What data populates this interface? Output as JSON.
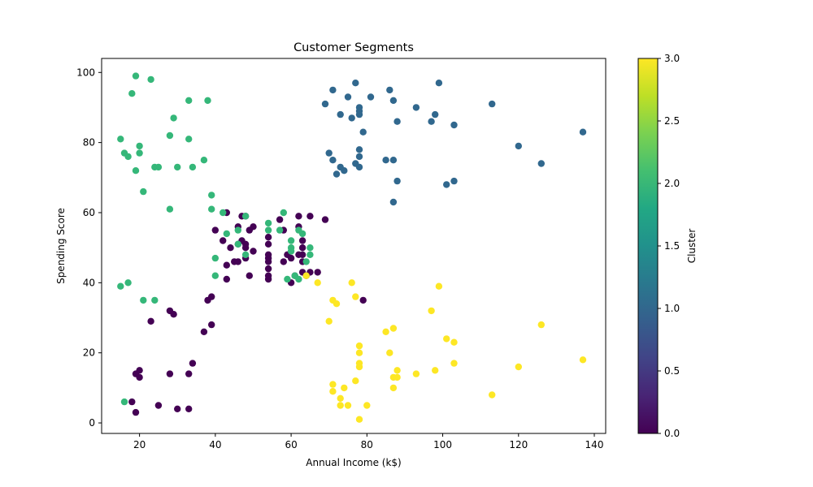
{
  "chart_data": {
    "type": "scatter",
    "title": "Customer Segments",
    "xlabel": "Annual Income (k$)",
    "ylabel": "Spending Score",
    "xlim": [
      10,
      143
    ],
    "ylim": [
      -3,
      104
    ],
    "xticks": [
      20,
      40,
      60,
      80,
      100,
      120,
      140
    ],
    "yticks": [
      0,
      20,
      40,
      60,
      80,
      100
    ],
    "grid": false,
    "colorbar": {
      "label": "Cluster",
      "min": 0.0,
      "max": 3.0,
      "ticks": [
        "0.0",
        "0.5",
        "1.0",
        "1.5",
        "2.0",
        "2.5",
        "3.0"
      ],
      "colormap": "viridis"
    },
    "cluster_colors": [
      "#440154",
      "#31688e",
      "#35b779",
      "#fde725"
    ],
    "series": [
      {
        "cluster": 0,
        "points": [
          [
            18,
            6
          ],
          [
            19,
            3
          ],
          [
            19,
            14
          ],
          [
            20,
            15
          ],
          [
            20,
            13
          ],
          [
            23,
            29
          ],
          [
            25,
            5
          ],
          [
            28,
            14
          ],
          [
            28,
            32
          ],
          [
            29,
            31
          ],
          [
            30,
            4
          ],
          [
            33,
            4
          ],
          [
            33,
            14
          ],
          [
            34,
            17
          ],
          [
            37,
            26
          ],
          [
            38,
            35
          ],
          [
            39,
            28
          ],
          [
            39,
            36
          ],
          [
            40,
            55
          ],
          [
            42,
            52
          ],
          [
            43,
            60
          ],
          [
            43,
            45
          ],
          [
            43,
            41
          ],
          [
            44,
            50
          ],
          [
            45,
            46
          ],
          [
            46,
            51
          ],
          [
            46,
            46
          ],
          [
            46,
            56
          ],
          [
            47,
            59
          ],
          [
            47,
            52
          ],
          [
            48,
            51
          ],
          [
            48,
            50
          ],
          [
            48,
            59
          ],
          [
            48,
            47
          ],
          [
            49,
            42
          ],
          [
            49,
            55
          ],
          [
            50,
            49
          ],
          [
            50,
            56
          ],
          [
            54,
            53
          ],
          [
            54,
            51
          ],
          [
            54,
            47
          ],
          [
            54,
            48
          ],
          [
            54,
            46
          ],
          [
            54,
            44
          ],
          [
            54,
            42
          ],
          [
            54,
            41
          ],
          [
            57,
            58
          ],
          [
            58,
            55
          ],
          [
            58,
            46
          ],
          [
            59,
            48
          ],
          [
            60,
            47
          ],
          [
            60,
            40
          ],
          [
            61,
            42
          ],
          [
            62,
            59
          ],
          [
            62,
            56
          ],
          [
            62,
            48
          ],
          [
            63,
            52
          ],
          [
            63,
            50
          ],
          [
            63,
            48
          ],
          [
            63,
            46
          ],
          [
            63,
            43
          ],
          [
            64,
            42
          ],
          [
            65,
            59
          ],
          [
            65,
            43
          ],
          [
            67,
            43
          ],
          [
            69,
            58
          ],
          [
            79,
            35
          ]
        ]
      },
      {
        "cluster": 1,
        "points": [
          [
            69,
            91
          ],
          [
            70,
            77
          ],
          [
            71,
            95
          ],
          [
            71,
            75
          ],
          [
            72,
            71
          ],
          [
            73,
            88
          ],
          [
            73,
            73
          ],
          [
            74,
            72
          ],
          [
            75,
            93
          ],
          [
            76,
            87
          ],
          [
            77,
            97
          ],
          [
            77,
            74
          ],
          [
            78,
            90
          ],
          [
            78,
            89
          ],
          [
            78,
            88
          ],
          [
            78,
            78
          ],
          [
            78,
            76
          ],
          [
            78,
            73
          ],
          [
            79,
            83
          ],
          [
            81,
            93
          ],
          [
            85,
            75
          ],
          [
            86,
            95
          ],
          [
            87,
            92
          ],
          [
            87,
            75
          ],
          [
            87,
            63
          ],
          [
            88,
            86
          ],
          [
            88,
            69
          ],
          [
            93,
            90
          ],
          [
            97,
            86
          ],
          [
            98,
            88
          ],
          [
            99,
            97
          ],
          [
            101,
            68
          ],
          [
            103,
            85
          ],
          [
            103,
            69
          ],
          [
            113,
            91
          ],
          [
            120,
            79
          ],
          [
            126,
            74
          ],
          [
            137,
            83
          ]
        ]
      },
      {
        "cluster": 2,
        "points": [
          [
            15,
            39
          ],
          [
            15,
            81
          ],
          [
            16,
            6
          ],
          [
            16,
            77
          ],
          [
            17,
            40
          ],
          [
            17,
            76
          ],
          [
            18,
            94
          ],
          [
            19,
            72
          ],
          [
            19,
            99
          ],
          [
            20,
            77
          ],
          [
            20,
            79
          ],
          [
            21,
            35
          ],
          [
            21,
            66
          ],
          [
            23,
            98
          ],
          [
            24,
            35
          ],
          [
            24,
            73
          ],
          [
            25,
            73
          ],
          [
            28,
            82
          ],
          [
            28,
            61
          ],
          [
            29,
            87
          ],
          [
            30,
            73
          ],
          [
            33,
            92
          ],
          [
            33,
            81
          ],
          [
            34,
            73
          ],
          [
            37,
            75
          ],
          [
            38,
            92
          ],
          [
            39,
            65
          ],
          [
            39,
            61
          ],
          [
            40,
            47
          ],
          [
            40,
            42
          ],
          [
            42,
            60
          ],
          [
            43,
            54
          ],
          [
            46,
            55
          ],
          [
            46,
            51
          ],
          [
            48,
            59
          ],
          [
            48,
            48
          ],
          [
            54,
            57
          ],
          [
            54,
            55
          ],
          [
            57,
            55
          ],
          [
            58,
            60
          ],
          [
            59,
            41
          ],
          [
            60,
            52
          ],
          [
            60,
            50
          ],
          [
            60,
            49
          ],
          [
            61,
            42
          ],
          [
            62,
            41
          ],
          [
            62,
            55
          ],
          [
            63,
            54
          ],
          [
            64,
            46
          ],
          [
            65,
            50
          ],
          [
            65,
            48
          ]
        ]
      },
      {
        "cluster": 3,
        "points": [
          [
            64,
            42
          ],
          [
            67,
            40
          ],
          [
            70,
            29
          ],
          [
            71,
            35
          ],
          [
            71,
            11
          ],
          [
            71,
            9
          ],
          [
            72,
            34
          ],
          [
            73,
            7
          ],
          [
            73,
            5
          ],
          [
            74,
            10
          ],
          [
            75,
            5
          ],
          [
            76,
            40
          ],
          [
            77,
            36
          ],
          [
            77,
            12
          ],
          [
            78,
            22
          ],
          [
            78,
            20
          ],
          [
            78,
            17
          ],
          [
            78,
            16
          ],
          [
            78,
            1
          ],
          [
            80,
            5
          ],
          [
            85,
            26
          ],
          [
            86,
            20
          ],
          [
            87,
            27
          ],
          [
            87,
            13
          ],
          [
            87,
            10
          ],
          [
            88,
            15
          ],
          [
            88,
            13
          ],
          [
            93,
            14
          ],
          [
            97,
            32
          ],
          [
            98,
            15
          ],
          [
            99,
            39
          ],
          [
            101,
            24
          ],
          [
            103,
            23
          ],
          [
            103,
            17
          ],
          [
            113,
            8
          ],
          [
            120,
            16
          ],
          [
            126,
            28
          ],
          [
            137,
            18
          ]
        ]
      }
    ]
  }
}
